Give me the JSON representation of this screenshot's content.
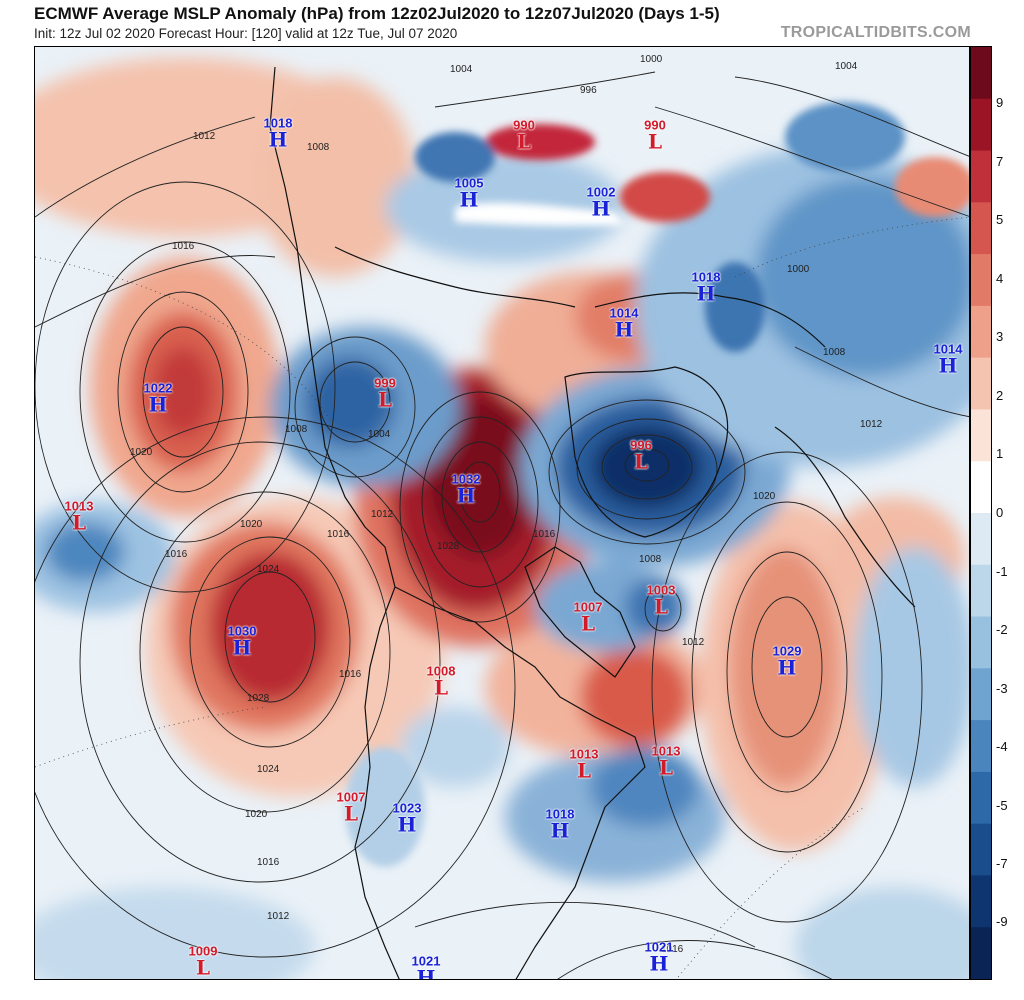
{
  "header": {
    "title": "ECMWF Average MSLP Anomaly (hPa) from 12z02Jul2020 to 12z07Jul2020 (Days 1-5)",
    "subtitle": "Init: 12z Jul 02 2020   Forecast Hour: [120]   valid at 12z Tue, Jul 07 2020",
    "brand": "TROPICALTIDBITS.COM"
  },
  "colorbar": {
    "ticks": [
      "9",
      "7",
      "5",
      "4",
      "3",
      "2",
      "1",
      "0",
      "-1",
      "-2",
      "-3",
      "-4",
      "-5",
      "-7",
      "-9"
    ],
    "colors": [
      "#6d0a1c",
      "#9a1426",
      "#c0303a",
      "#d5564f",
      "#e27a68",
      "#eea08a",
      "#f5c4b0",
      "#fbe3d8",
      "#ffffff",
      "#dde9f3",
      "#bcd6ea",
      "#98c0df",
      "#6fa4d0",
      "#4a85be",
      "#2d68a8",
      "#1a4d8c",
      "#0f3570",
      "#0a2456"
    ]
  },
  "pressure_centers": [
    {
      "type": "H",
      "value": "1018"
    },
    {
      "type": "L",
      "value": "990"
    },
    {
      "type": "L",
      "value": "990"
    },
    {
      "type": "H",
      "value": "1005"
    },
    {
      "type": "H",
      "value": "1002"
    },
    {
      "type": "H",
      "value": "1014"
    },
    {
      "type": "H",
      "value": "1018"
    },
    {
      "type": "H",
      "value": "1014"
    },
    {
      "type": "H",
      "value": "1022"
    },
    {
      "type": "L",
      "value": "999"
    },
    {
      "type": "L",
      "value": "996"
    },
    {
      "type": "H",
      "value": "1032"
    },
    {
      "type": "L",
      "value": "1013"
    },
    {
      "type": "L",
      "value": "1003"
    },
    {
      "type": "L",
      "value": "1007"
    },
    {
      "type": "H",
      "value": "1030"
    },
    {
      "type": "H",
      "value": "1029"
    },
    {
      "type": "L",
      "value": "1008"
    },
    {
      "type": "L",
      "value": "1013"
    },
    {
      "type": "L",
      "value": "1013"
    },
    {
      "type": "L",
      "value": "1007"
    },
    {
      "type": "H",
      "value": "1023"
    },
    {
      "type": "H",
      "value": "1018"
    },
    {
      "type": "L",
      "value": "1009"
    },
    {
      "type": "H",
      "value": "1021"
    },
    {
      "type": "H",
      "value": "1021"
    }
  ],
  "isobar_labels": [
    "1004",
    "1000",
    "996",
    "1008",
    "1004",
    "1012",
    "1016",
    "1020",
    "1024",
    "1028",
    "1016",
    "1012",
    "1020",
    "1016",
    "1012",
    "1016",
    "1020",
    "1024",
    "1028",
    "1016",
    "1012",
    "1016",
    "1020",
    "1016",
    "1008",
    "1004",
    "1008",
    "1012",
    "1000",
    "1008"
  ]
}
